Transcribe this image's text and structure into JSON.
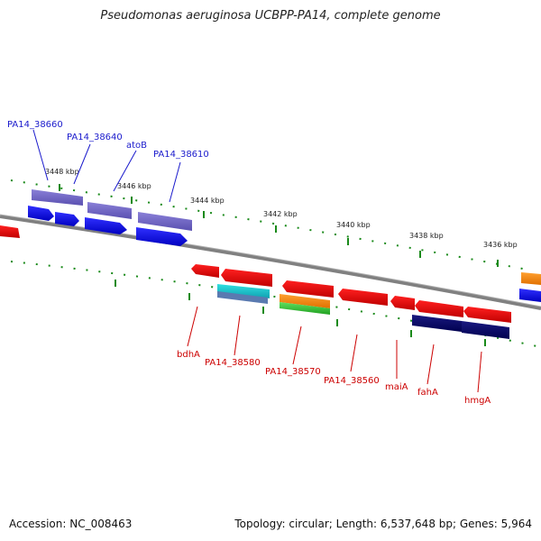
{
  "title": "Pseudomonas aeruginosa UCBPP-PA14, complete genome",
  "footer": {
    "accession": "Accession: NC_008463",
    "topology": "Topology: circular; Length: 6,537,648 bp; Genes: 5,964"
  },
  "scale_labels": [
    "3448 kbp",
    "3446 kbp",
    "3444 kbp",
    "3442 kbp",
    "3440 kbp",
    "3438 kbp",
    "3436 kbp"
  ],
  "top_gene_labels": [
    "PA14_38660",
    "PA14_38640",
    "atoB",
    "PA14_38610"
  ],
  "bottom_gene_labels": [
    "bdhA",
    "PA14_38580",
    "PA14_38570",
    "PA14_38560",
    "maiA",
    "fahA",
    "hmgA"
  ],
  "colors": {
    "top_strand": "#1010e0",
    "top_strand_alt": "#6a5acd",
    "bottom_strand": "#e00000",
    "backbone": "#808080",
    "tick": "#1a8a1a",
    "label_top": "#1a1acc",
    "label_bottom": "#cc0000"
  }
}
